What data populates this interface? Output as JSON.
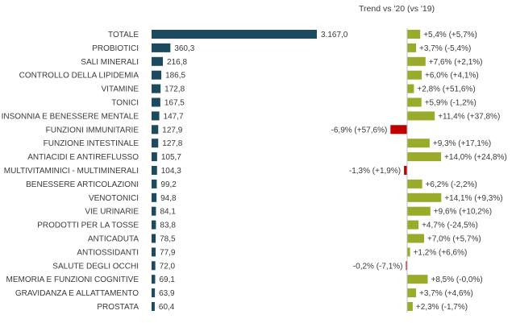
{
  "chart_data": {
    "type": "bar",
    "trend_title": "Trend vs '20 (vs '19)",
    "categories": [
      "TOTALE",
      "PROBIOTICI",
      "SALI MINERALI",
      "CONTROLLO DELLA LIPIDEMIA",
      "VITAMINE",
      "TONICI",
      "INSONNIA E BENESSERE MENTALE",
      "FUNZIONI IMMUNITARIE",
      "FUNZIONE INTESTINALE",
      "ANTIACIDI E ANTIREFLUSSO",
      "MULTIVITAMINICI - MULTIMINERALI",
      "BENESSERE ARTICOLAZIONI",
      "VENOTONICI",
      "VIE URINARIE",
      "PRODOTTI PER LA TOSSE",
      "ANTICADUTA",
      "ANTIOSSIDANTI",
      "SALUTE DEGLI OCCHI",
      "MEMORIA E FUNZIONI COGNITIVE",
      "GRAVIDANZA E ALLATTAMENTO",
      "PROSTATA"
    ],
    "values": [
      3167.0,
      360.3,
      216.8,
      186.5,
      172.8,
      167.5,
      147.7,
      127.9,
      127.8,
      105.7,
      104.3,
      99.2,
      94.8,
      84.1,
      83.8,
      78.5,
      77.9,
      72.0,
      69.1,
      63.9,
      60.4
    ],
    "value_labels": [
      "3.167,0",
      "360,3",
      "216,8",
      "186,5",
      "172,8",
      "167,5",
      "147,7",
      "127,9",
      "127,8",
      "105,7",
      "104,3",
      "99,2",
      "94,8",
      "84,1",
      "83,8",
      "78,5",
      "77,9",
      "72,0",
      "69,1",
      "63,9",
      "60,4"
    ],
    "trend_values": [
      5.4,
      3.7,
      7.6,
      6.0,
      2.8,
      5.9,
      11.4,
      -6.9,
      9.3,
      14.0,
      -1.3,
      6.2,
      14.1,
      9.6,
      4.7,
      7.0,
      1.2,
      -0.2,
      8.5,
      3.7,
      2.3
    ],
    "trend_labels": [
      "+5,4% (+5,7%)",
      "+3,7% (-5,4%)",
      "+7,6% (+2,1%)",
      "+6,0% (+4,1%)",
      "+2,8% (+51,6%)",
      "+5,9% (-1,2%)",
      "+11,4% (+37,8%)",
      "-6,9% (+57,6%)",
      "+9,3% (+17,1%)",
      "+14,0% (+24,8%)",
      "-1,3% (+1,9%)",
      "+6,2% (-2,2%)",
      "+14,1% (+9,3%)",
      "+9,6% (+10,2%)",
      "+4,7% (-24,5%)",
      "+7,0% (+5,7%)",
      "+1,2% (+6,6%)",
      "-0,2% (-7,1%)",
      "+8,5% (-0,0%)",
      "+3,7% (+4,6%)",
      "+2,3% (-1,7%)"
    ],
    "colors": {
      "value_bar": "#1e4a5f",
      "trend_positive": "#9aaa2a",
      "trend_negative": "#c00000",
      "axis_line": "#bfbfbf",
      "text": "#3a3a3a"
    }
  }
}
